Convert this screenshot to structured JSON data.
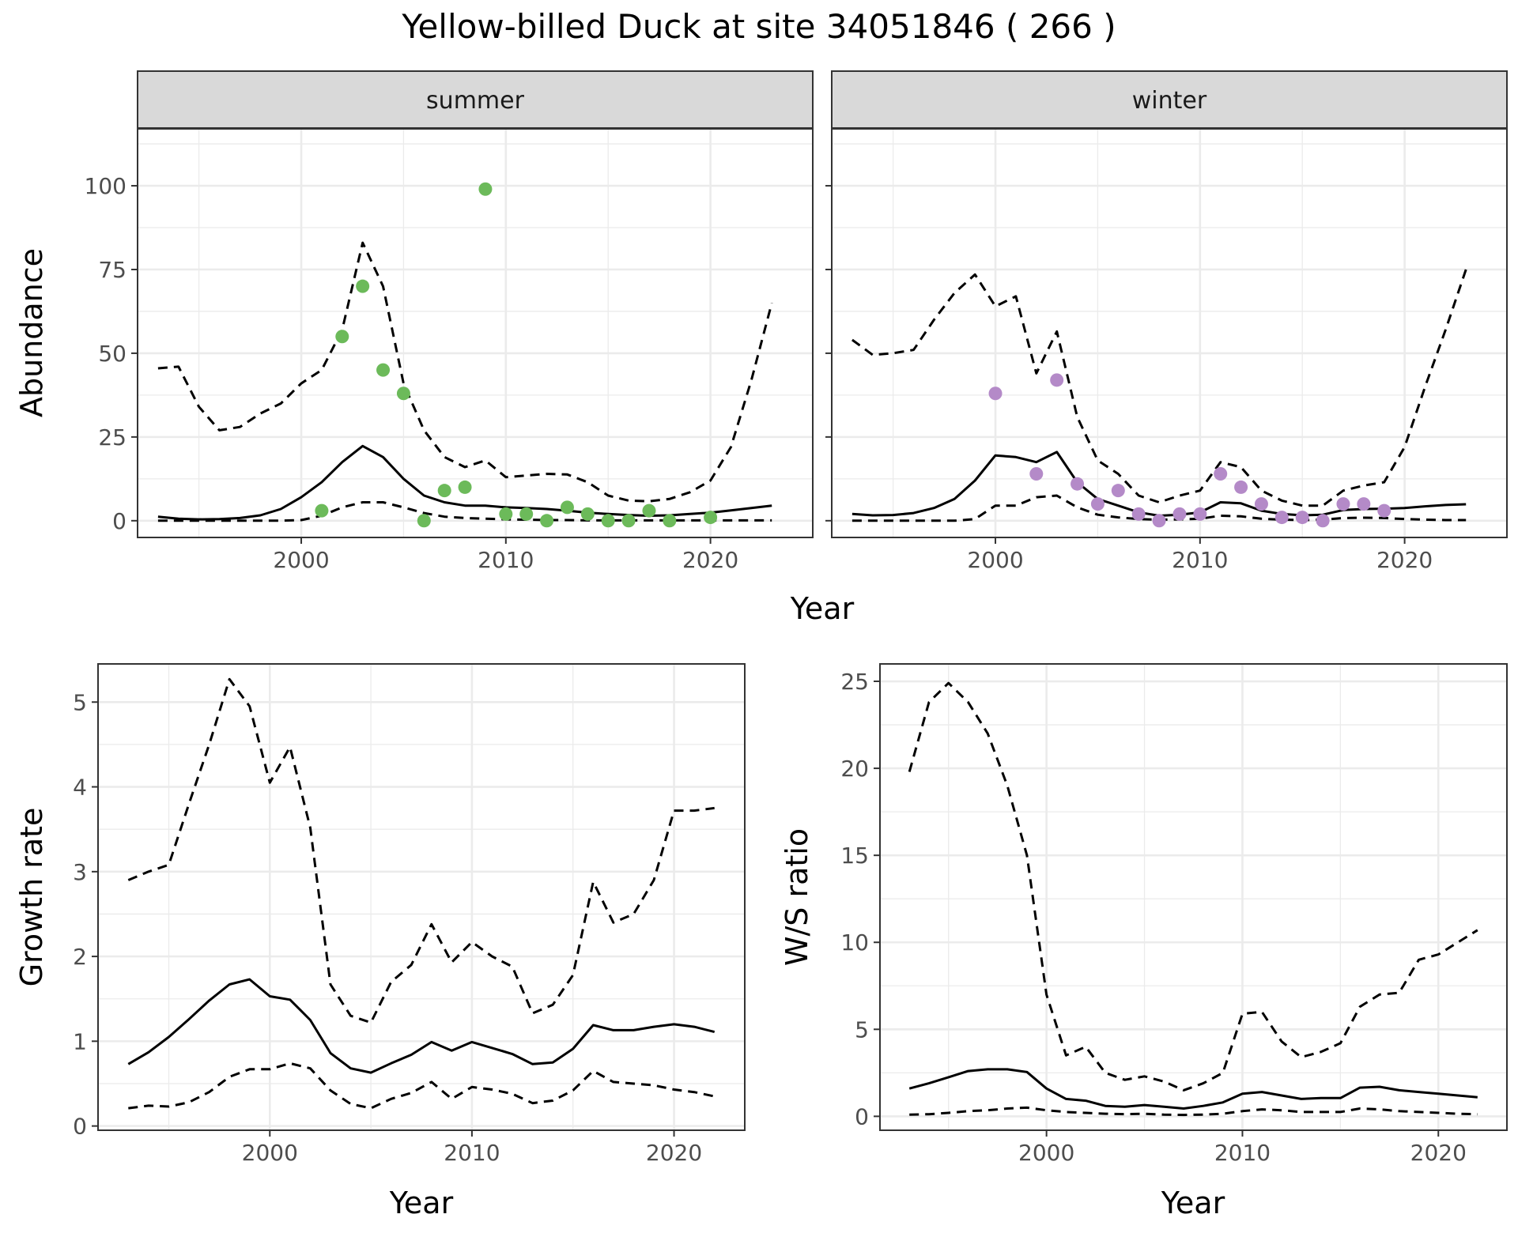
{
  "title": "Yellow-billed Duck at site 34051846 ( 266 )",
  "colors": {
    "summer_points": "#6cba5a",
    "winter_points": "#b48ac8",
    "line": "#000000",
    "panel_border": "#333333",
    "grid_major": "#ebebeb",
    "strip_fill": "#d9d9d9"
  },
  "chart_data": [
    {
      "type": "line",
      "panel": "summer",
      "strip_label": "summer",
      "xlabel": "Year",
      "ylabel": "Abundance",
      "xlim": [
        1992,
        2025
      ],
      "ylim": [
        -5,
        117
      ],
      "xticks": [
        2000,
        2010,
        2020
      ],
      "yticks": [
        0,
        25,
        50,
        75,
        100
      ],
      "grid": true,
      "series": [
        {
          "role": "fit",
          "style": "solid",
          "x": [
            1993,
            1994,
            1995,
            1996,
            1997,
            1998,
            1999,
            2000,
            2001,
            2002,
            2003,
            2004,
            2005,
            2006,
            2007,
            2008,
            2009,
            2010,
            2011,
            2012,
            2013,
            2014,
            2015,
            2016,
            2017,
            2018,
            2019,
            2020,
            2021,
            2022,
            2023
          ],
          "y": [
            1.2,
            0.6,
            0.4,
            0.5,
            0.8,
            1.6,
            3.5,
            7,
            11.5,
            17.5,
            22.3,
            19,
            12.5,
            7.5,
            5.5,
            4.5,
            4.5,
            4,
            3.8,
            3.5,
            3,
            2.4,
            2,
            1.7,
            1.5,
            1.6,
            2,
            2.4,
            3.1,
            3.8,
            4.5
          ]
        },
        {
          "role": "upper",
          "style": "dashed",
          "x": [
            1993,
            1994,
            1995,
            1996,
            1997,
            1998,
            1999,
            2000,
            2001,
            2002,
            2003,
            2004,
            2005,
            2006,
            2007,
            2008,
            2009,
            2010,
            2011,
            2012,
            2013,
            2014,
            2015,
            2016,
            2017,
            2018,
            2019,
            2020,
            2021,
            2022,
            2023
          ],
          "y": [
            45.5,
            46,
            34,
            27,
            28,
            32,
            35,
            41,
            45,
            57,
            83,
            70,
            41,
            27,
            19,
            16,
            18,
            13,
            13.5,
            14,
            13.8,
            11.5,
            7.5,
            6,
            5.8,
            6.5,
            8.5,
            12,
            22,
            42,
            65
          ]
        },
        {
          "role": "lower",
          "style": "dashed",
          "x": [
            1993,
            1994,
            1995,
            1996,
            1997,
            1998,
            1999,
            2000,
            2001,
            2002,
            2003,
            2004,
            2005,
            2006,
            2007,
            2008,
            2009,
            2010,
            2011,
            2012,
            2013,
            2014,
            2015,
            2016,
            2017,
            2018,
            2019,
            2020,
            2021,
            2022,
            2023
          ],
          "y": [
            0,
            0,
            0,
            0,
            0,
            0,
            0,
            0.2,
            1.5,
            4,
            5.5,
            5.5,
            4,
            2.3,
            1.2,
            0.8,
            0.6,
            0.4,
            0.3,
            0.2,
            0.2,
            0.1,
            0.1,
            0.1,
            0.1,
            0.1,
            0.1,
            0.1,
            0.1,
            0.1,
            0.1
          ]
        },
        {
          "role": "observed",
          "style": "points",
          "x": [
            2001,
            2002,
            2003,
            2004,
            2005,
            2006,
            2007,
            2008,
            2009,
            2010,
            2011,
            2012,
            2013,
            2014,
            2015,
            2016,
            2017,
            2018,
            2020
          ],
          "y": [
            3,
            55,
            70,
            45,
            38,
            0,
            9,
            10,
            99,
            2,
            2,
            0,
            4,
            2,
            0,
            0,
            3,
            0,
            1
          ]
        }
      ]
    },
    {
      "type": "line",
      "panel": "winter",
      "strip_label": "winter",
      "xlabel": "Year",
      "ylabel": "Abundance",
      "xlim": [
        1992,
        2025
      ],
      "ylim": [
        -5,
        117
      ],
      "xticks": [
        2000,
        2010,
        2020
      ],
      "yticks": [
        0,
        25,
        50,
        75,
        100
      ],
      "grid": true,
      "series": [
        {
          "role": "fit",
          "style": "solid",
          "x": [
            1993,
            1994,
            1995,
            1996,
            1997,
            1998,
            1999,
            2000,
            2001,
            2002,
            2003,
            2004,
            2005,
            2006,
            2007,
            2008,
            2009,
            2010,
            2011,
            2012,
            2013,
            2014,
            2015,
            2016,
            2017,
            2018,
            2019,
            2020,
            2021,
            2022,
            2023
          ],
          "y": [
            2,
            1.6,
            1.7,
            2.3,
            3.8,
            6.5,
            12,
            19.5,
            19,
            17.5,
            20.5,
            11.5,
            6.5,
            4.5,
            2.5,
            1.5,
            1.8,
            2.5,
            5.5,
            5.2,
            3,
            2,
            1.6,
            1.8,
            3.2,
            3.5,
            3.6,
            3.8,
            4.3,
            4.7,
            4.9
          ]
        },
        {
          "role": "upper",
          "style": "dashed",
          "x": [
            1993,
            1994,
            1995,
            1996,
            1997,
            1998,
            1999,
            2000,
            2001,
            2002,
            2003,
            2004,
            2005,
            2006,
            2007,
            2008,
            2009,
            2010,
            2011,
            2012,
            2013,
            2014,
            2015,
            2016,
            2017,
            2018,
            2019,
            2020,
            2021,
            2022,
            2023
          ],
          "y": [
            54,
            49.5,
            50,
            51,
            60,
            68,
            73.5,
            64,
            67,
            44,
            56.5,
            31,
            18,
            14,
            7.5,
            5.5,
            7.5,
            9,
            17.5,
            16,
            9,
            6,
            4.5,
            4.5,
            9,
            10.5,
            11.5,
            22,
            40,
            57,
            75
          ]
        },
        {
          "role": "lower",
          "style": "dashed",
          "x": [
            1993,
            1994,
            1995,
            1996,
            1997,
            1998,
            1999,
            2000,
            2001,
            2002,
            2003,
            2004,
            2005,
            2006,
            2007,
            2008,
            2009,
            2010,
            2011,
            2012,
            2013,
            2014,
            2015,
            2016,
            2017,
            2018,
            2019,
            2020,
            2021,
            2022,
            2023
          ],
          "y": [
            0,
            0,
            0,
            0,
            0,
            0,
            0.5,
            4.5,
            4.5,
            7,
            7.5,
            4,
            1.8,
            1,
            0.5,
            0.3,
            0.4,
            0.6,
            1.5,
            1.3,
            0.6,
            0.3,
            0.2,
            0.3,
            0.8,
            0.9,
            0.8,
            0.5,
            0.3,
            0.2,
            0.2
          ]
        },
        {
          "role": "observed",
          "style": "points",
          "x": [
            2000,
            2002,
            2003,
            2004,
            2005,
            2006,
            2007,
            2008,
            2009,
            2010,
            2011,
            2012,
            2013,
            2014,
            2015,
            2016,
            2017,
            2018,
            2019
          ],
          "y": [
            38,
            14,
            42,
            11,
            5,
            9,
            2,
            0,
            2,
            2,
            14,
            10,
            5,
            1,
            1,
            0,
            5,
            5,
            3
          ]
        }
      ]
    },
    {
      "type": "line",
      "panel": "growth",
      "xlabel": "Year",
      "ylabel": "Growth rate",
      "xlim": [
        1991.5,
        2023.5
      ],
      "ylim": [
        -0.05,
        5.45
      ],
      "xticks": [
        2000,
        2010,
        2020
      ],
      "yticks": [
        0,
        1,
        2,
        3,
        4,
        5
      ],
      "grid": true,
      "series": [
        {
          "role": "fit",
          "style": "solid",
          "x": [
            1993,
            1994,
            1995,
            1996,
            1997,
            1998,
            1999,
            2000,
            2001,
            2002,
            2003,
            2004,
            2005,
            2006,
            2007,
            2008,
            2009,
            2010,
            2011,
            2012,
            2013,
            2014,
            2015,
            2016,
            2017,
            2018,
            2019,
            2020,
            2021,
            2022
          ],
          "y": [
            0.73,
            0.87,
            1.05,
            1.26,
            1.48,
            1.67,
            1.73,
            1.53,
            1.49,
            1.25,
            0.86,
            0.68,
            0.63,
            0.74,
            0.84,
            0.99,
            0.89,
            0.99,
            0.92,
            0.85,
            0.73,
            0.75,
            0.91,
            1.19,
            1.13,
            1.13,
            1.17,
            1.2,
            1.17,
            1.11
          ]
        },
        {
          "role": "upper",
          "style": "dashed",
          "x": [
            1993,
            1994,
            1995,
            1996,
            1997,
            1998,
            1999,
            2000,
            2001,
            2002,
            2003,
            2004,
            2005,
            2006,
            2007,
            2008,
            2009,
            2010,
            2011,
            2012,
            2013,
            2014,
            2015,
            2016,
            2017,
            2018,
            2019,
            2020,
            2021,
            2022
          ],
          "y": [
            2.9,
            3,
            3.08,
            3.8,
            4.5,
            5.27,
            4.95,
            4.05,
            4.47,
            3.52,
            1.67,
            1.3,
            1.22,
            1.7,
            1.9,
            2.38,
            1.93,
            2.17,
            2,
            1.88,
            1.33,
            1.43,
            1.78,
            2.88,
            2.4,
            2.5,
            2.9,
            3.72,
            3.72,
            3.75
          ]
        },
        {
          "role": "lower",
          "style": "dashed",
          "x": [
            1993,
            1994,
            1995,
            1996,
            1997,
            1998,
            1999,
            2000,
            2001,
            2002,
            2003,
            2004,
            2005,
            2006,
            2007,
            2008,
            2009,
            2010,
            2011,
            2012,
            2013,
            2014,
            2015,
            2016,
            2017,
            2018,
            2019,
            2020,
            2021,
            2022
          ],
          "y": [
            0.21,
            0.24,
            0.23,
            0.28,
            0.4,
            0.58,
            0.67,
            0.67,
            0.74,
            0.68,
            0.42,
            0.26,
            0.21,
            0.32,
            0.39,
            0.52,
            0.32,
            0.46,
            0.43,
            0.38,
            0.27,
            0.3,
            0.42,
            0.65,
            0.52,
            0.5,
            0.48,
            0.43,
            0.4,
            0.35
          ]
        }
      ]
    },
    {
      "type": "line",
      "panel": "ratio",
      "xlabel": "Year",
      "ylabel": "W/S ratio",
      "xlim": [
        1991.5,
        2023.5
      ],
      "ylim": [
        -0.8,
        26
      ],
      "xticks": [
        2000,
        2010,
        2020
      ],
      "yticks": [
        0,
        5,
        10,
        15,
        20,
        25
      ],
      "grid": true,
      "series": [
        {
          "role": "fit",
          "style": "solid",
          "x": [
            1993,
            1994,
            1995,
            1996,
            1997,
            1998,
            1999,
            2000,
            2001,
            2002,
            2003,
            2004,
            2005,
            2006,
            2007,
            2008,
            2009,
            2010,
            2011,
            2012,
            2013,
            2014,
            2015,
            2016,
            2017,
            2018,
            2019,
            2020,
            2021,
            2022
          ],
          "y": [
            1.6,
            1.9,
            2.25,
            2.6,
            2.7,
            2.7,
            2.55,
            1.6,
            1,
            0.9,
            0.6,
            0.55,
            0.65,
            0.55,
            0.45,
            0.6,
            0.8,
            1.3,
            1.4,
            1.2,
            1,
            1.05,
            1.05,
            1.65,
            1.7,
            1.5,
            1.4,
            1.3,
            1.2,
            1.1
          ]
        },
        {
          "role": "upper",
          "style": "dashed",
          "x": [
            1993,
            1994,
            1995,
            1996,
            1997,
            1998,
            1999,
            2000,
            2001,
            2002,
            2003,
            2004,
            2005,
            2006,
            2007,
            2008,
            2009,
            2010,
            2011,
            2012,
            2013,
            2014,
            2015,
            2016,
            2017,
            2018,
            2019,
            2020,
            2021,
            2022
          ],
          "y": [
            19.8,
            23.8,
            24.9,
            23.8,
            22,
            19,
            15,
            7,
            3.5,
            4,
            2.5,
            2.1,
            2.3,
            2,
            1.5,
            1.9,
            2.5,
            5.9,
            6,
            4.3,
            3.4,
            3.7,
            4.2,
            6.3,
            7,
            7.1,
            9,
            9.3,
            10,
            10.7
          ]
        },
        {
          "role": "lower",
          "style": "dashed",
          "x": [
            1993,
            1994,
            1995,
            1996,
            1997,
            1998,
            1999,
            2000,
            2001,
            2002,
            2003,
            2004,
            2005,
            2006,
            2007,
            2008,
            2009,
            2010,
            2011,
            2012,
            2013,
            2014,
            2015,
            2016,
            2017,
            2018,
            2019,
            2020,
            2021,
            2022
          ],
          "y": [
            0.1,
            0.12,
            0.2,
            0.3,
            0.35,
            0.45,
            0.5,
            0.35,
            0.25,
            0.2,
            0.15,
            0.12,
            0.15,
            0.1,
            0.08,
            0.1,
            0.15,
            0.3,
            0.4,
            0.35,
            0.25,
            0.25,
            0.25,
            0.45,
            0.4,
            0.3,
            0.25,
            0.2,
            0.15,
            0.12
          ]
        }
      ]
    }
  ]
}
